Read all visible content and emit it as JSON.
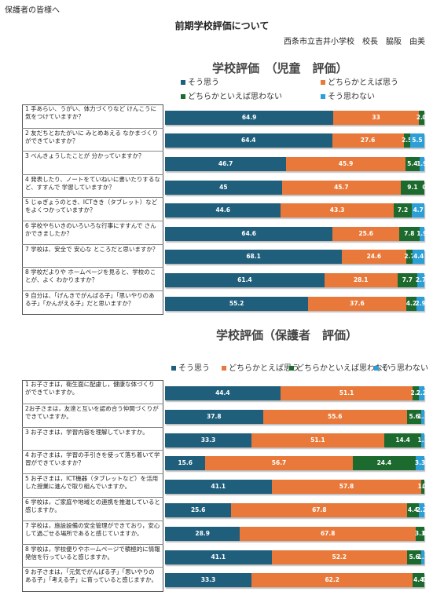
{
  "header": {
    "note": "保護者の皆様へ",
    "title": "前期学校評価について",
    "author": "西条市立吉井小学校　校長　脇阪　由美"
  },
  "chart_data": [
    {
      "type": "stacked-bar",
      "orientation": "horizontal",
      "title": "学校評価　（児童　評価）",
      "categories": [
        "1 手あらい、うがい、体力づくりなど けんこうに気をつけていますか？",
        "2 友だちとおたがいに みとめあえる なかまづくりができていますか？",
        "3 べんきょうしたことが 分かっていますか？",
        "4 発表したり、ノートをていねいに書いたりするなど、すすんで 学習していますか？",
        "5 じゅぎょうのとき、ICTきき（タブレット）などをよくつかっていますか？",
        "6 学校やちいきのいろいろな行事にすすんで さんかできましたか？",
        "7 学校は、安全で 安心な ところだと思いますか？",
        "8 学校だよりや ホームページを見ると、学校のことが、よく わかりますか？",
        "9 自分は、「げんきでがんばる子」「思いやりのある子」「かんがえる子」だと思いますか？"
      ],
      "series": [
        {
          "name": "そう思う",
          "color": "#1f5f7c",
          "values": [
            64.9,
            64.4,
            46.7,
            45,
            44.6,
            64.6,
            68.1,
            61.4,
            55.2
          ]
        },
        {
          "name": "どちらかとえば思う",
          "color": "#e8793a",
          "values": [
            33,
            27.6,
            45.9,
            45.7,
            43.3,
            25.6,
            24.6,
            28.1,
            37.6
          ]
        },
        {
          "name": "どちらかといえば思わない",
          "color": "#1d6a2f",
          "values": [
            2.1,
            2.5,
            5.4,
            9.1,
            7.2,
            7.8,
            2.7,
            7.7,
            4.2
          ]
        },
        {
          "name": "そう思わない",
          "color": "#2b9fd6",
          "values": [
            0,
            5.5,
            1.9,
            0,
            4.7,
            1.9,
            4.4,
            2.7,
            2.9
          ]
        }
      ],
      "legend": "top"
    },
    {
      "type": "stacked-bar",
      "orientation": "horizontal",
      "title": "学校評価（保護者　評価）",
      "categories": [
        "1 お子さまは，衛生面に配慮し，健康な体づくりができていますか。",
        "2お子さまは，友達と互いを認め合う仲間づくりができていますか。",
        "3 お子さまは，学習内容を理解していますか。",
        "4 お子さまは，学習の手引きを使って落ち着いて学習ができていますか？",
        "5 お子さまは，ICT機器（タブレットなど）を活用した授業に進んで取り組んでいますか。",
        "6 学校は，ご家庭や地域との連携を推進していると感じますか。",
        "7 学校は，施設設備の安全管理ができており，安心して過ごせる場所であると感じていますか。",
        "8 学校は，学校便りやホームページで積極的に情報発信を行っていると感じますか。",
        "9 お子さまは，「元気でがんばる子」「思いやりのある子」「考える子」に育っていると感じますか。"
      ],
      "series": [
        {
          "name": "そう思う",
          "color": "#1f5f7c",
          "values": [
            44.4,
            37.8,
            33.3,
            15.6,
            41.1,
            25.6,
            28.9,
            41.1,
            33.3
          ]
        },
        {
          "name": "どちらかとえば思う",
          "color": "#e8793a",
          "values": [
            51.1,
            55.6,
            51.1,
            56.7,
            57.8,
            67.8,
            67.8,
            52.2,
            62.2
          ]
        },
        {
          "name": "どちらかといえば思わない",
          "color": "#1d6a2f",
          "values": [
            2.2,
            5.6,
            14.4,
            24.4,
            1.1,
            4.4,
            3.3,
            5.6,
            4.4
          ]
        },
        {
          "name": "そう思わない",
          "color": "#2b9fd6",
          "values": [
            2.2,
            1.1,
            1.1,
            3.3,
            0,
            2.2,
            0,
            1.1,
            0
          ]
        }
      ],
      "legend": "top"
    }
  ]
}
